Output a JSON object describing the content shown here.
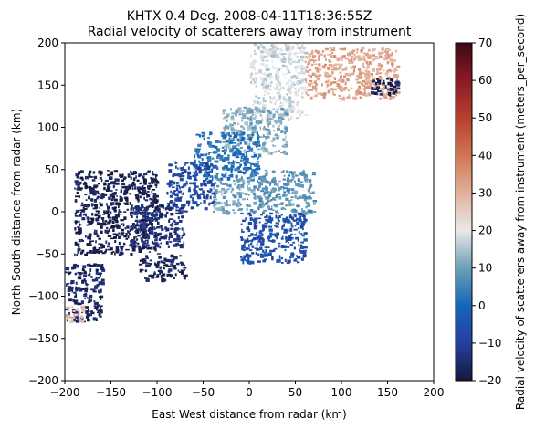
{
  "chart_data": {
    "type": "heatmap",
    "title": "KHTX 0.4 Deg. 2008-04-11T18:36:55Z",
    "subtitle": "Radial velocity of scatterers away from instrument",
    "xlabel": "East West distance from radar (km)",
    "ylabel": "North South distance from radar (km)",
    "colorbar_label": "Radial velocity of scatterers away from instrument (meters_per_second)",
    "xlim": [
      -200,
      200
    ],
    "ylim": [
      -200,
      200
    ],
    "x_ticks": [
      "−200",
      "−150",
      "−100",
      "−50",
      "0",
      "50",
      "100",
      "150",
      "200"
    ],
    "y_ticks": [
      "−200",
      "−150",
      "−100",
      "−50",
      "0",
      "50",
      "100",
      "150",
      "200"
    ],
    "colorbar_range": [
      -20,
      70
    ],
    "colorbar_ticks": [
      "−20",
      "−10",
      "0",
      "10",
      "20",
      "30",
      "40",
      "50",
      "60",
      "70"
    ],
    "colormap_stops": [
      {
        "value": -20,
        "color": "#16193d"
      },
      {
        "value": -10,
        "color": "#253f9e"
      },
      {
        "value": 0,
        "color": "#1466b9"
      },
      {
        "value": 10,
        "color": "#6d9fb6"
      },
      {
        "value": 20,
        "color": "#e9e9ea"
      },
      {
        "value": 30,
        "color": "#e2b09b"
      },
      {
        "value": 40,
        "color": "#cf7652"
      },
      {
        "value": 50,
        "color": "#b5402e"
      },
      {
        "value": 60,
        "color": "#8a1a25"
      },
      {
        "value": 70,
        "color": "#3b0a12"
      }
    ],
    "grid": false,
    "velocity_regions": [
      {
        "x": [
          60,
          160
        ],
        "y": [
          135,
          195
        ],
        "velocity": 32
      },
      {
        "x": [
          0,
          60
        ],
        "y": [
          110,
          200
        ],
        "velocity": 18
      },
      {
        "x": [
          -30,
          40
        ],
        "y": [
          70,
          125
        ],
        "velocity": 12
      },
      {
        "x": [
          -60,
          10
        ],
        "y": [
          40,
          95
        ],
        "velocity": 2
      },
      {
        "x": [
          -40,
          0
        ],
        "y": [
          0,
          40
        ],
        "velocity": 10
      },
      {
        "x": [
          -90,
          -40
        ],
        "y": [
          5,
          60
        ],
        "velocity": -8
      },
      {
        "x": [
          -190,
          -100
        ],
        "y": [
          -50,
          50
        ],
        "velocity": -18
      },
      {
        "x": [
          -130,
          -70
        ],
        "y": [
          -40,
          10
        ],
        "velocity": -14
      },
      {
        "x": [
          -200,
          -160
        ],
        "y": [
          -130,
          -60
        ],
        "velocity": -16
      },
      {
        "x": [
          -200,
          -180
        ],
        "y": [
          -130,
          -110
        ],
        "velocity": 28
      },
      {
        "x": [
          -120,
          -70
        ],
        "y": [
          -80,
          -50
        ],
        "velocity": -17
      },
      {
        "x": [
          -10,
          60
        ],
        "y": [
          -60,
          0
        ],
        "velocity": -6
      },
      {
        "x": [
          0,
          70
        ],
        "y": [
          0,
          50
        ],
        "velocity": 8
      },
      {
        "x": [
          130,
          160
        ],
        "y": [
          140,
          160
        ],
        "velocity": -18
      }
    ]
  }
}
